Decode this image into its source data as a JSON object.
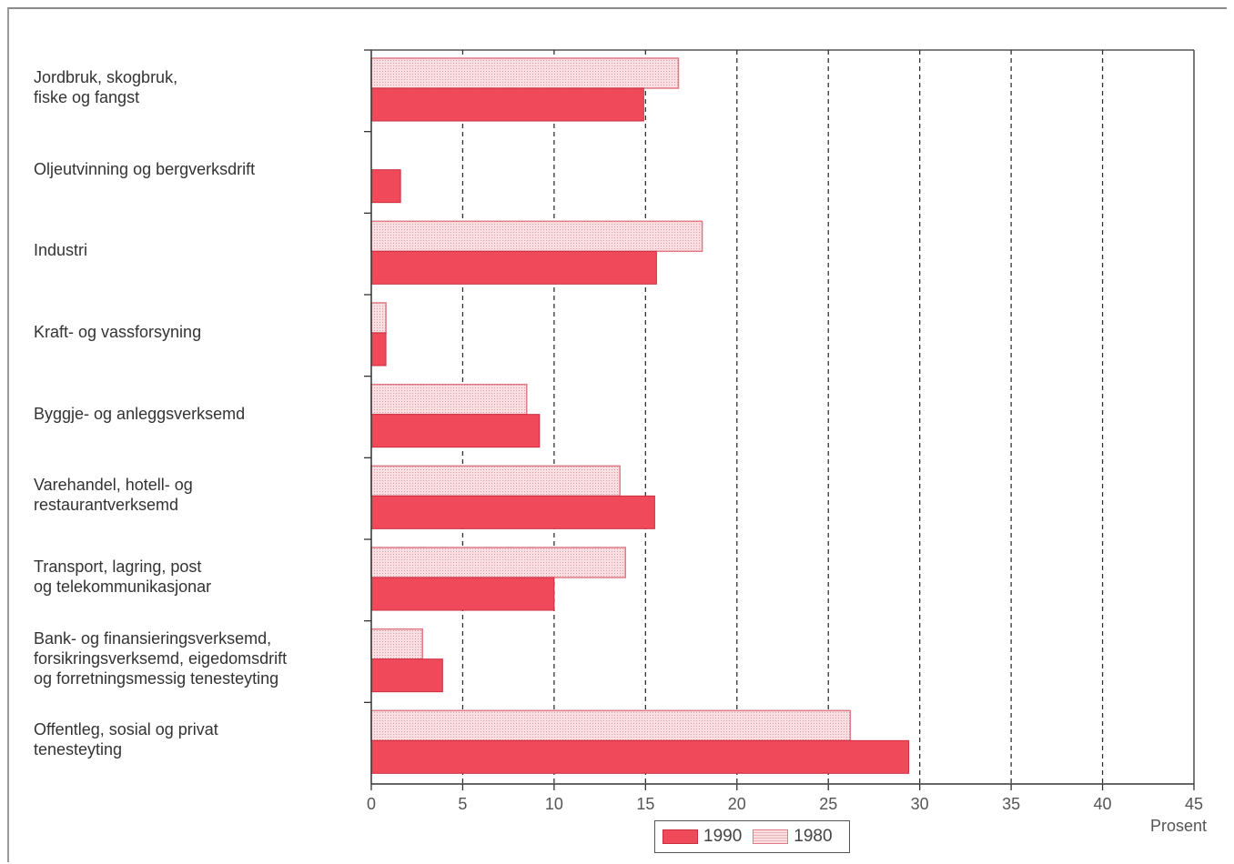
{
  "chart_data": {
    "type": "bar",
    "orientation": "horizontal",
    "categories": [
      "Jordbruk, skogbruk,\nfiske og fangst",
      "Oljeutvinning og bergverksdrift",
      "Industri",
      "Kraft- og vassforsyning",
      "Byggje- og anleggsverksemd",
      "Varehandel, hotell- og\nrestaurantverksemd",
      "Transport, lagring, post\nog telekommunikasjonar",
      "Bank- og finansieringsverksemd,\nforsikringsverksemd, eigedomsdrift\nog forretningsmessig tenesteyting",
      "Offentleg, sosial og privat\ntenesteyting"
    ],
    "series": [
      {
        "name": "1990",
        "color": "#f04a5a",
        "values": [
          14.9,
          1.6,
          15.6,
          0.8,
          9.2,
          15.5,
          10.0,
          3.9,
          29.4
        ]
      },
      {
        "name": "1980",
        "color": "#f7d2d6",
        "pattern": "dotted",
        "values": [
          16.8,
          0,
          18.1,
          0.8,
          8.5,
          13.6,
          13.9,
          2.8,
          26.2
        ]
      }
    ],
    "xlim": [
      0,
      45
    ],
    "xticks": [
      "0",
      "5",
      "10",
      "15",
      "20",
      "25",
      "30",
      "35",
      "40",
      "45"
    ],
    "xlabel": "Prosent",
    "ylabel": "",
    "title": "",
    "grid": "vertical dashed",
    "legend_position": "bottom-center"
  }
}
